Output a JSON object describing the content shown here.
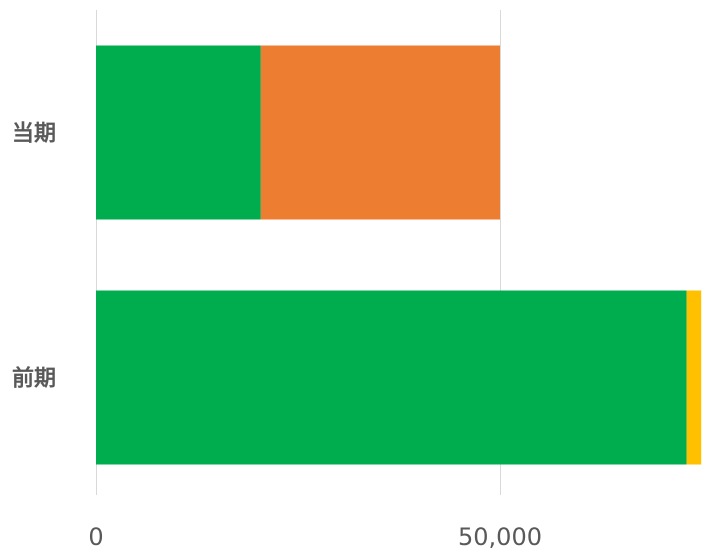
{
  "chart_data": {
    "type": "bar",
    "orientation": "horizontal",
    "stacked": true,
    "categories": [
      "当期",
      "前期"
    ],
    "series": [
      {
        "color": "#00ad4e",
        "values": [
          20400,
          73100
        ]
      },
      {
        "color": "#ed7d31",
        "values": [
          29600,
          0
        ]
      },
      {
        "color": "#ffc000",
        "values": [
          0,
          1800
        ]
      }
    ],
    "xlim": [
      0,
      75000
    ],
    "xticks": [
      0,
      50000
    ],
    "xtick_labels": [
      "0",
      "50,000"
    ],
    "grid": true,
    "legend": "none"
  }
}
